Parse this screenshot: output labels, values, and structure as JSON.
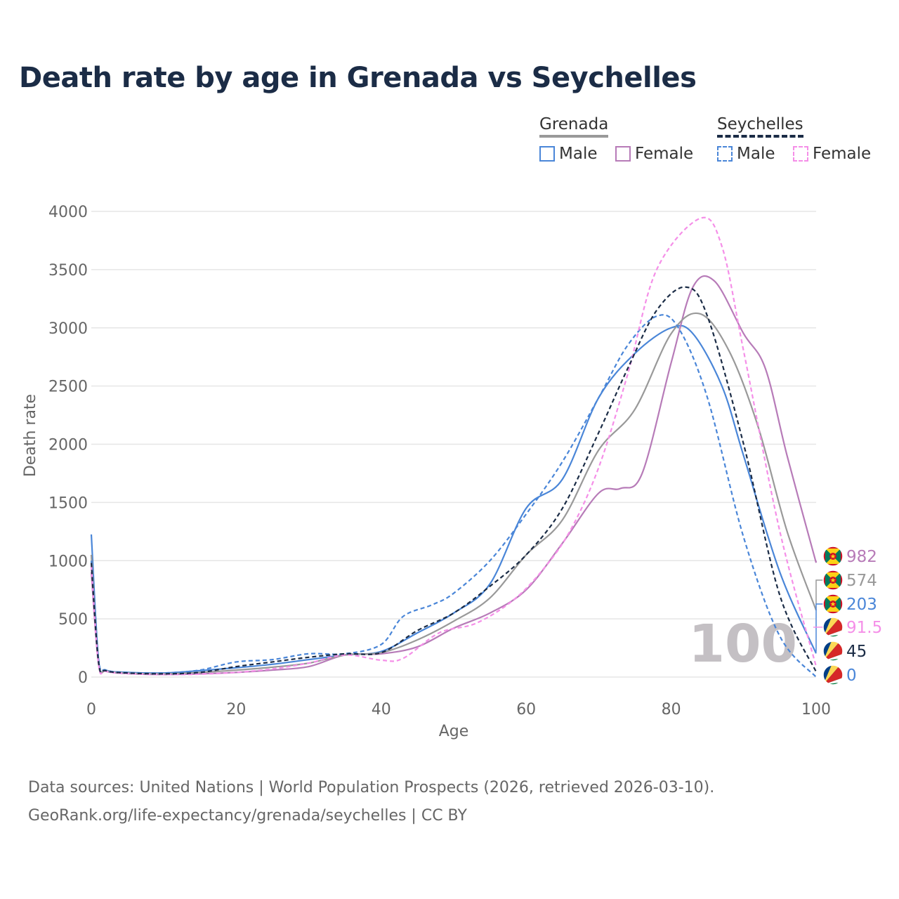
{
  "title": "Death rate by age in Grenada vs Seychelles",
  "legend": {
    "groups": [
      {
        "name": "Grenada",
        "style": "solid"
      },
      {
        "name": "Seychelles",
        "style": "dashed"
      }
    ],
    "items": [
      {
        "label": "Male",
        "group": "Grenada",
        "color": "#4a86d8",
        "style": "solid"
      },
      {
        "label": "Female",
        "group": "Grenada",
        "color": "#b77bb8",
        "style": "solid"
      },
      {
        "label": "Male",
        "group": "Seychelles",
        "color": "#4a86d8",
        "style": "dashed"
      },
      {
        "label": "Female",
        "group": "Seychelles",
        "color": "#f58fe8",
        "style": "dashed"
      }
    ]
  },
  "footer": {
    "line1": "Data sources: United Nations | World Population Prospects (2026, retrieved 2026-03-10).",
    "line2": "GeoRank.org/life-expectancy/grenada/seychelles | CC BY"
  },
  "chart_data": {
    "type": "line",
    "xlabel": "Age",
    "ylabel": "Death rate",
    "xlim": [
      0,
      100
    ],
    "ylim": [
      0,
      4000
    ],
    "xticks": [
      0,
      20,
      40,
      60,
      80,
      100
    ],
    "yticks": [
      0,
      500,
      1000,
      1500,
      2000,
      2500,
      3000,
      3500,
      4000
    ],
    "watermark": "100",
    "series": [
      {
        "name": "Grenada Male",
        "color": "#4a86d8",
        "dash": false,
        "points": [
          [
            0,
            1225
          ],
          [
            1,
            150
          ],
          [
            2,
            60
          ],
          [
            5,
            40
          ],
          [
            10,
            35
          ],
          [
            15,
            55
          ],
          [
            20,
            80
          ],
          [
            25,
            110
          ],
          [
            30,
            150
          ],
          [
            35,
            190
          ],
          [
            40,
            220
          ],
          [
            45,
            380
          ],
          [
            50,
            550
          ],
          [
            55,
            800
          ],
          [
            60,
            1450
          ],
          [
            65,
            1700
          ],
          [
            70,
            2400
          ],
          [
            75,
            2780
          ],
          [
            80,
            3000
          ],
          [
            83,
            2950
          ],
          [
            87,
            2500
          ],
          [
            90,
            1900
          ],
          [
            95,
            900
          ],
          [
            100,
            203
          ]
        ]
      },
      {
        "name": "Grenada Female",
        "color": "#b77bb8",
        "dash": false,
        "points": [
          [
            0,
            900
          ],
          [
            1,
            110
          ],
          [
            2,
            50
          ],
          [
            5,
            30
          ],
          [
            10,
            22
          ],
          [
            15,
            28
          ],
          [
            20,
            40
          ],
          [
            25,
            60
          ],
          [
            30,
            90
          ],
          [
            35,
            190
          ],
          [
            40,
            200
          ],
          [
            45,
            260
          ],
          [
            50,
            420
          ],
          [
            55,
            550
          ],
          [
            60,
            750
          ],
          [
            65,
            1150
          ],
          [
            70,
            1580
          ],
          [
            73,
            1620
          ],
          [
            76,
            1750
          ],
          [
            80,
            2700
          ],
          [
            83,
            3350
          ],
          [
            86,
            3400
          ],
          [
            90,
            2950
          ],
          [
            93,
            2650
          ],
          [
            96,
            1900
          ],
          [
            100,
            982
          ]
        ]
      },
      {
        "name": "Grenada Both",
        "color": "#999999",
        "dash": false,
        "points": [
          [
            0,
            1050
          ],
          [
            1,
            130
          ],
          [
            2,
            55
          ],
          [
            5,
            35
          ],
          [
            10,
            28
          ],
          [
            15,
            40
          ],
          [
            20,
            60
          ],
          [
            25,
            85
          ],
          [
            30,
            120
          ],
          [
            35,
            190
          ],
          [
            40,
            210
          ],
          [
            45,
            320
          ],
          [
            50,
            480
          ],
          [
            55,
            680
          ],
          [
            60,
            1050
          ],
          [
            65,
            1350
          ],
          [
            70,
            1950
          ],
          [
            75,
            2300
          ],
          [
            80,
            2950
          ],
          [
            84,
            3120
          ],
          [
            88,
            2800
          ],
          [
            92,
            2150
          ],
          [
            96,
            1250
          ],
          [
            100,
            574
          ]
        ]
      },
      {
        "name": "Seychelles Male",
        "color": "#4a86d8",
        "dash": true,
        "points": [
          [
            0,
            1000
          ],
          [
            1,
            150
          ],
          [
            2,
            60
          ],
          [
            5,
            40
          ],
          [
            10,
            35
          ],
          [
            15,
            60
          ],
          [
            20,
            130
          ],
          [
            25,
            150
          ],
          [
            30,
            200
          ],
          [
            35,
            200
          ],
          [
            40,
            280
          ],
          [
            43,
            520
          ],
          [
            47,
            620
          ],
          [
            50,
            720
          ],
          [
            55,
            1000
          ],
          [
            60,
            1400
          ],
          [
            65,
            1850
          ],
          [
            70,
            2400
          ],
          [
            74,
            2850
          ],
          [
            78,
            3100
          ],
          [
            81,
            3000
          ],
          [
            85,
            2400
          ],
          [
            90,
            1200
          ],
          [
            95,
            350
          ],
          [
            100,
            0
          ]
        ]
      },
      {
        "name": "Seychelles Female",
        "color": "#f58fe8",
        "dash": true,
        "points": [
          [
            0,
            950
          ],
          [
            1,
            110
          ],
          [
            2,
            50
          ],
          [
            5,
            30
          ],
          [
            10,
            22
          ],
          [
            15,
            25
          ],
          [
            20,
            40
          ],
          [
            25,
            70
          ],
          [
            30,
            120
          ],
          [
            35,
            190
          ],
          [
            40,
            145
          ],
          [
            43,
            160
          ],
          [
            48,
            380
          ],
          [
            53,
            460
          ],
          [
            58,
            650
          ],
          [
            62,
            900
          ],
          [
            66,
            1250
          ],
          [
            70,
            1800
          ],
          [
            74,
            2600
          ],
          [
            78,
            3500
          ],
          [
            84,
            3940
          ],
          [
            87,
            3700
          ],
          [
            90,
            2800
          ],
          [
            95,
            1250
          ],
          [
            100,
            91.5
          ]
        ]
      },
      {
        "name": "Seychelles Both",
        "color": "#1b2c46",
        "dash": true,
        "points": [
          [
            0,
            980
          ],
          [
            1,
            130
          ],
          [
            2,
            55
          ],
          [
            5,
            35
          ],
          [
            10,
            28
          ],
          [
            15,
            40
          ],
          [
            20,
            90
          ],
          [
            25,
            130
          ],
          [
            30,
            170
          ],
          [
            35,
            200
          ],
          [
            40,
            210
          ],
          [
            45,
            400
          ],
          [
            50,
            550
          ],
          [
            55,
            780
          ],
          [
            60,
            1050
          ],
          [
            65,
            1450
          ],
          [
            70,
            2100
          ],
          [
            74,
            2650
          ],
          [
            78,
            3150
          ],
          [
            82,
            3350
          ],
          [
            85,
            3100
          ],
          [
            90,
            2000
          ],
          [
            95,
            700
          ],
          [
            100,
            45
          ]
        ]
      }
    ],
    "end_labels": [
      {
        "value": "982",
        "color": "#b77bb8",
        "flag": "grenada"
      },
      {
        "value": "574",
        "color": "#999999",
        "flag": "grenada"
      },
      {
        "value": "203",
        "color": "#4a86d8",
        "flag": "grenada"
      },
      {
        "value": "91.5",
        "color": "#f58fe8",
        "flag": "seychelles"
      },
      {
        "value": "45",
        "color": "#1b2c46",
        "flag": "seychelles"
      },
      {
        "value": "0",
        "color": "#4a86d8",
        "flag": "seychelles"
      }
    ]
  }
}
